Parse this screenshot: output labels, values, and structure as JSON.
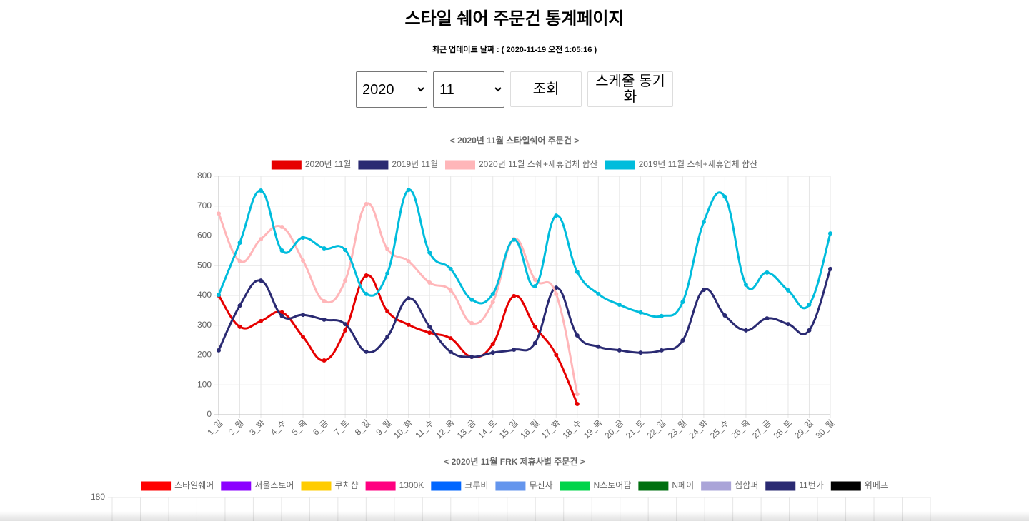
{
  "header": {
    "title": "스타일 쉐어 주문건 통계페이지",
    "updated": "최근 업데이트 날짜 : ( 2020-11-19 오전 1:05:16 )"
  },
  "controls": {
    "year": "2020",
    "month": "11",
    "search": "조회",
    "sync": "스케줄 동기화"
  },
  "chart_data": [
    {
      "type": "line",
      "title": "< 2020년 11월 스타일쉐어 주문건 >",
      "categories": [
        "1_일",
        "2_월",
        "3_화",
        "4_수",
        "5_목",
        "6_금",
        "7_토",
        "8_일",
        "9_월",
        "10_화",
        "11_수",
        "12_목",
        "13_금",
        "14_토",
        "15_일",
        "16_월",
        "17_화",
        "18_수",
        "19_목",
        "20_금",
        "21_토",
        "22_일",
        "23_월",
        "24_화",
        "25_수",
        "26_목",
        "27_금",
        "28_토",
        "29_일",
        "30_월"
      ],
      "ylim": [
        0,
        800
      ],
      "yticks": [
        0,
        100,
        200,
        300,
        400,
        500,
        600,
        700,
        800
      ],
      "grid": true,
      "legend": "top",
      "series": [
        {
          "name": "2020년 11월",
          "color": "#e60000",
          "values": [
            400,
            295,
            314,
            343,
            261,
            182,
            283,
            467,
            347,
            302,
            275,
            256,
            194,
            237,
            398,
            295,
            201,
            36,
            null,
            null,
            null,
            null,
            null,
            null,
            null,
            null,
            null,
            null,
            null,
            null
          ]
        },
        {
          "name": "2019년 11월",
          "color": "#2a2a72",
          "values": [
            216,
            366,
            450,
            331,
            335,
            319,
            304,
            211,
            261,
            390,
            295,
            211,
            194,
            208,
            218,
            240,
            426,
            266,
            228,
            216,
            208,
            216,
            249,
            419,
            333,
            283,
            323,
            304,
            283,
            489
          ]
        },
        {
          "name": "2020년 11월 스쉐+제휴업체 합산",
          "color": "#ffb6b9",
          "values": [
            675,
            515,
            589,
            630,
            517,
            381,
            450,
            707,
            556,
            515,
            443,
            417,
            307,
            378,
            589,
            453,
            405,
            69,
            null,
            null,
            null,
            null,
            null,
            null,
            null,
            null,
            null,
            null,
            null,
            null
          ]
        },
        {
          "name": "2019년 11월 스쉐+제휴업체 합산",
          "color": "#00bcdc",
          "values": [
            402,
            577,
            752,
            551,
            594,
            558,
            553,
            405,
            474,
            754,
            544,
            489,
            386,
            405,
            587,
            431,
            668,
            479,
            405,
            369,
            343,
            331,
            378,
            647,
            731,
            436,
            477,
            417,
            369,
            608
          ]
        }
      ]
    },
    {
      "type": "line",
      "title": "< 2020년 11월 FRK 제휴사별 주문건 >",
      "yticks": [
        180
      ],
      "grid": true,
      "legend": "top",
      "series": [
        {
          "name": "스타일쉐어",
          "color": "#ff0000"
        },
        {
          "name": "서울스토어",
          "color": "#8b00ff"
        },
        {
          "name": "쿠치샵",
          "color": "#ffcc00"
        },
        {
          "name": "1300K",
          "color": "#ff0080"
        },
        {
          "name": "크루비",
          "color": "#0066ff"
        },
        {
          "name": "무신사",
          "color": "#6495ed"
        },
        {
          "name": "N스토어팜",
          "color": "#00d44a"
        },
        {
          "name": "N페이",
          "color": "#007010"
        },
        {
          "name": "힙합퍼",
          "color": "#aaa4d8"
        },
        {
          "name": "11번가",
          "color": "#2a2a72"
        },
        {
          "name": "위메프",
          "color": "#000000"
        }
      ]
    }
  ]
}
